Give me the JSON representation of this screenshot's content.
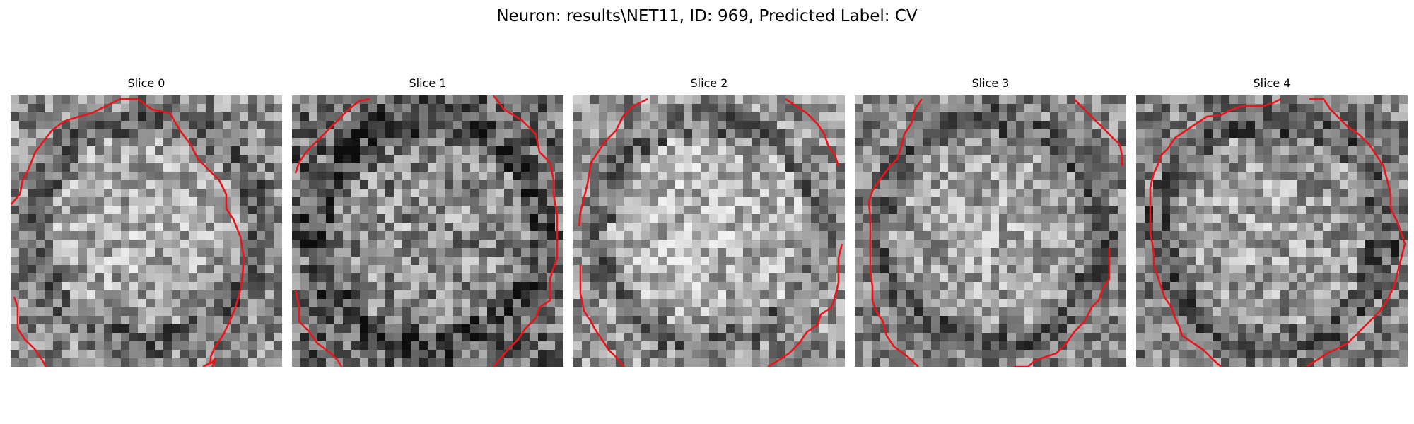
{
  "figure": {
    "title": "Neuron: results\\NET11, ID: 969, Predicted Label: CV"
  },
  "colors": {
    "background": "#ffffff",
    "contour": "#e8161b",
    "pixel_dark": "#141414",
    "pixel_light": "#e6e6e6"
  },
  "slices": [
    {
      "title": "Slice 0",
      "brightness": 0.62,
      "contrast": 0.55
    },
    {
      "title": "Slice 1",
      "brightness": 0.5,
      "contrast": 0.62
    },
    {
      "title": "Slice 2",
      "brightness": 0.66,
      "contrast": 0.55
    },
    {
      "title": "Slice 3",
      "brightness": 0.6,
      "contrast": 0.52
    },
    {
      "title": "Slice 4",
      "brightness": 0.58,
      "contrast": 0.55
    }
  ]
}
